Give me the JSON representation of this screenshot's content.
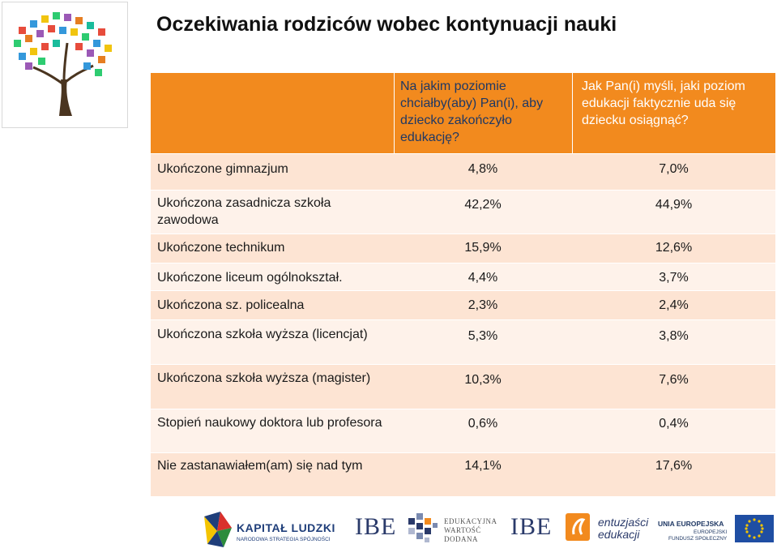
{
  "title": "Oczekiwania rodziców wobec kontynuacji nauki",
  "table": {
    "headers": {
      "col0": "",
      "col1": "Na jakim poziomie chciałby(aby) Pan(i), aby dziecko zakończyło edukację?",
      "col2": "Jak Pan(i) myśli, jaki poziom edukacji faktycznie uda się dziecku osiągnąć?"
    },
    "rows": [
      {
        "label": "Ukończone gimnazjum",
        "wanted": "4,8%",
        "expected": "7,0%"
      },
      {
        "label": "Ukończona zasadnicza szkoła zawodowa",
        "wanted": "42,2%",
        "expected": "44,9%"
      },
      {
        "label": "Ukończone technikum",
        "wanted": "15,9%",
        "expected": "12,6%"
      },
      {
        "label": "Ukończone liceum ogólnokształ.",
        "wanted": "4,4%",
        "expected": "3,7%"
      },
      {
        "label": "Ukończona sz. policealna",
        "wanted": "2,3%",
        "expected": "2,4%"
      },
      {
        "label": "Ukończona szkoła wyższa (licencjat)",
        "wanted": "5,3%",
        "expected": "3,8%"
      },
      {
        "label": "Ukończona szkoła wyższa (magister)",
        "wanted": "10,3%",
        "expected": "7,6%"
      },
      {
        "label": "Stopień naukowy doktora lub profesora",
        "wanted": "0,6%",
        "expected": "0,4%"
      },
      {
        "label": "Nie zastanawiałem(am) się nad tym",
        "wanted": "14,1%",
        "expected": "17,6%"
      }
    ]
  },
  "footer": {
    "kapital_ludzki": "KAPITAŁ LUDZKI",
    "kapital_ludzki_sub": "NARODOWA STRATEGIA SPÓJNOŚCI",
    "ibe": "IBE",
    "ew_line1": "EDUKACYJNA",
    "ew_line2": "WARTOŚĆ",
    "ew_line3": "DODANA",
    "ibe2": "IBE",
    "ent_line1": "entuzjaści",
    "ent_line2": "edukacji",
    "ue_line1": "UNIA EUROPEJSKA",
    "ue_line2": "EUROPEJSKI",
    "ue_line3": "FUNDUSZ SPOŁECZNY"
  },
  "colors": {
    "header_orange": "#f28a1e",
    "row_dark": "#fde4d3",
    "row_light": "#fef2ea",
    "header_text_navy": "#1f3864"
  }
}
